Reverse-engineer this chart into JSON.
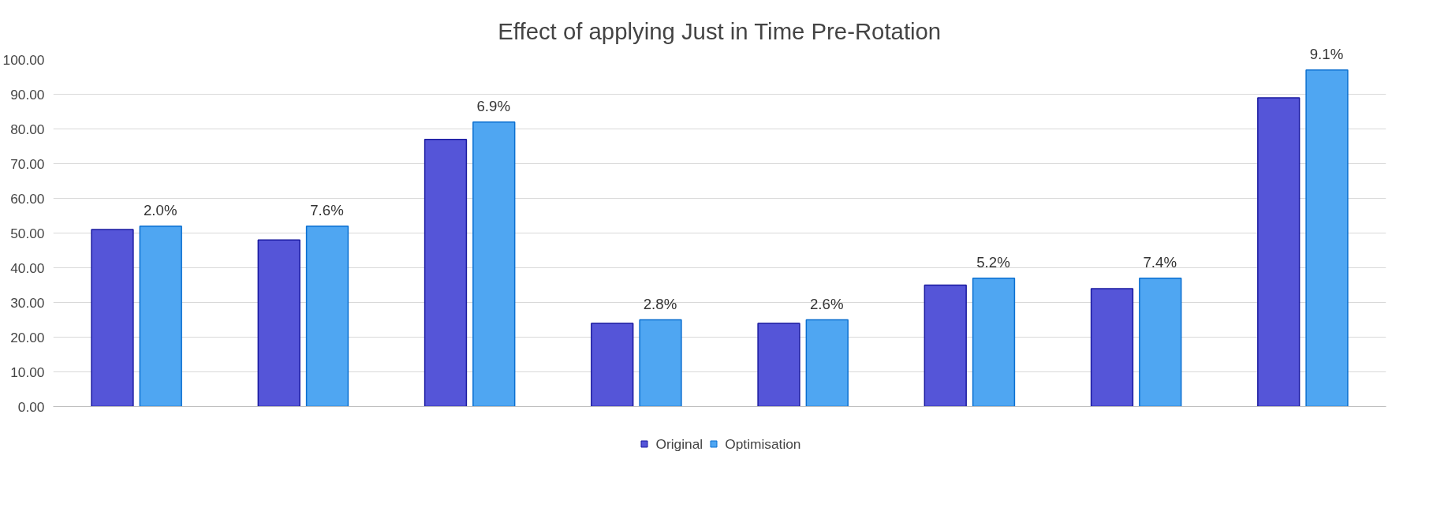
{
  "chart_data": {
    "type": "bar",
    "title": "Effect of applying Just in Time Pre-Rotation",
    "categories": [
      null,
      null,
      null,
      null,
      null,
      null,
      null,
      null
    ],
    "series": [
      {
        "name": "Original",
        "color": "#5555d8",
        "values": [
          51,
          48,
          77,
          24,
          24,
          35,
          34,
          89
        ]
      },
      {
        "name": "Optimisation",
        "color": "#4fa6f2",
        "values": [
          52,
          52,
          82,
          25,
          25,
          37,
          37,
          97
        ]
      }
    ],
    "annotations": [
      "2.0%",
      "7.6%",
      "6.9%",
      "2.8%",
      "2.6%",
      "5.2%",
      "7.4%",
      "9.1%"
    ],
    "ylim": [
      0,
      100
    ],
    "yticks": [
      {
        "value": 0,
        "label": "0.00"
      },
      {
        "value": 10,
        "label": "10.00"
      },
      {
        "value": 20,
        "label": "20.00"
      },
      {
        "value": 30,
        "label": "30.00"
      },
      {
        "value": 40,
        "label": "40.00"
      },
      {
        "value": 50,
        "label": "50.00"
      },
      {
        "value": 60,
        "label": "60.00"
      },
      {
        "value": 70,
        "label": "70.00"
      },
      {
        "value": 80,
        "label": "80.00"
      },
      {
        "value": 90,
        "label": "90.00"
      },
      {
        "value": 100,
        "label": "100.00"
      }
    ],
    "grid": "y",
    "legend": "bottom",
    "tick_labels": "y"
  }
}
